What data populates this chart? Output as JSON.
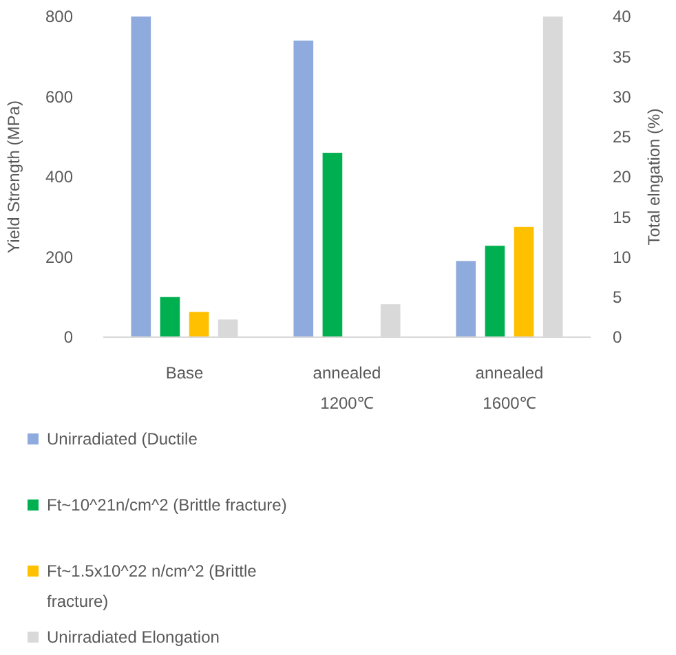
{
  "chart_data": {
    "type": "bar",
    "categories": [
      "Base",
      "annealed 1200℃",
      "annealed 1600℃"
    ],
    "ylabel": "Yield Strength (MPa)",
    "y2label": "Total elngation (%)",
    "ylim": [
      0,
      800
    ],
    "yticks": [
      0,
      200,
      400,
      600,
      800
    ],
    "y2lim": [
      0,
      40
    ],
    "y2ticks": [
      0,
      5,
      10,
      15,
      20,
      25,
      30,
      35,
      40
    ],
    "legend": "bottom",
    "grid": false,
    "series": [
      {
        "name": "Unirradiated (Ductile",
        "color": "#8faadc",
        "values": [
          800,
          740,
          190
        ]
      },
      {
        "name": "Ft~10^21n/cm^2 (Brittle fracture)",
        "color": "#00b050",
        "values": [
          100,
          460,
          228
        ]
      },
      {
        "name": "Ft~1.5x10^22 n/cm^2 (Brittle fracture)",
        "color": "#ffc000",
        "values": [
          63,
          null,
          275
        ]
      },
      {
        "name": "Unirradiated Elongation",
        "color": "#d9d9d9",
        "axis": "y2",
        "values": [
          2.2,
          4.1,
          40
        ]
      }
    ]
  }
}
